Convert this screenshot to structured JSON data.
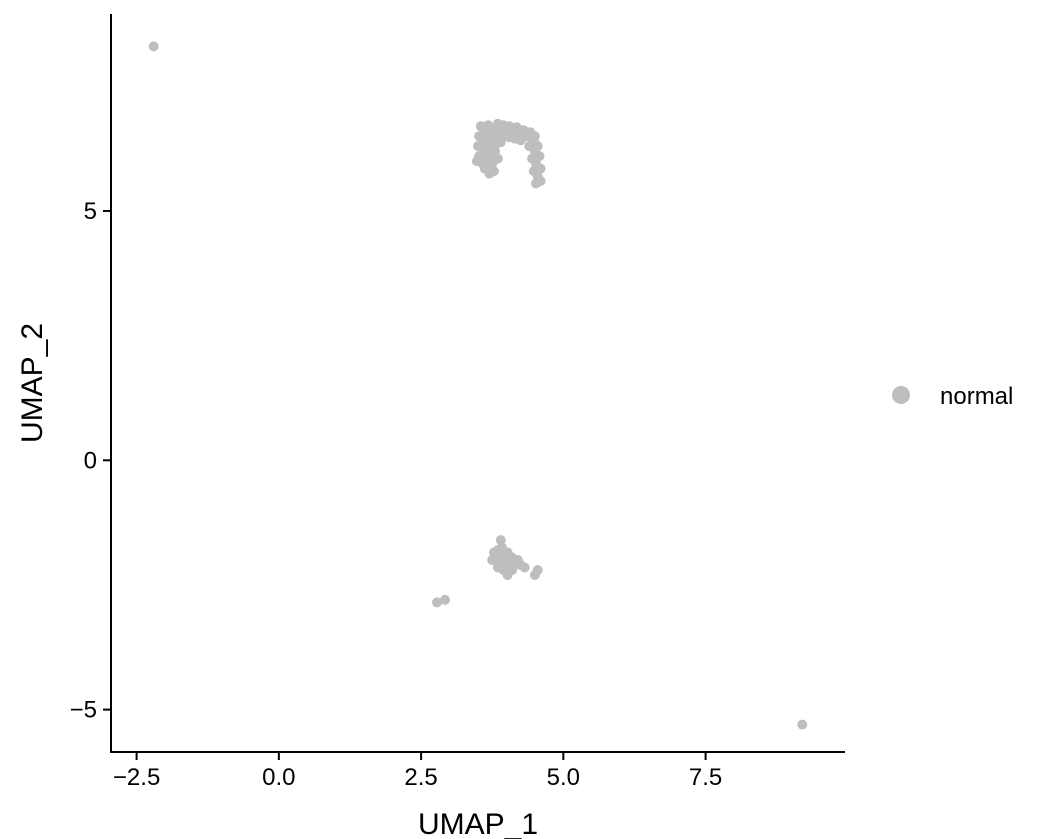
{
  "chart_data": {
    "type": "scatter",
    "title": "",
    "xlabel": "UMAP_1",
    "ylabel": "UMAP_2",
    "xlim": [
      -2.95,
      9.95
    ],
    "ylim": [
      -5.85,
      8.95
    ],
    "xticks": [
      {
        "value": -2.5,
        "label": "−2.5"
      },
      {
        "value": 0.0,
        "label": "0.0"
      },
      {
        "value": 2.5,
        "label": "2.5"
      },
      {
        "value": 5.0,
        "label": "5.0"
      },
      {
        "value": 7.5,
        "label": "7.5"
      }
    ],
    "yticks": [
      {
        "value": -5,
        "label": "−5"
      },
      {
        "value": 0,
        "label": "0"
      },
      {
        "value": 5,
        "label": "5"
      }
    ],
    "grid": false,
    "legend": {
      "position": "right",
      "entries": [
        {
          "label": "normal",
          "color": "#bebebe"
        }
      ]
    },
    "series": [
      {
        "name": "normal",
        "color": "#bebebe",
        "points": [
          [
            -2.2,
            8.3
          ],
          [
            9.2,
            -5.3
          ],
          [
            2.78,
            -2.85
          ],
          [
            2.92,
            -2.8
          ],
          [
            3.55,
            6.7
          ],
          [
            3.68,
            6.72
          ],
          [
            3.85,
            6.75
          ],
          [
            3.95,
            6.72
          ],
          [
            4.05,
            6.7
          ],
          [
            4.18,
            6.68
          ],
          [
            4.3,
            6.62
          ],
          [
            4.42,
            6.58
          ],
          [
            4.5,
            6.5
          ],
          [
            3.52,
            6.5
          ],
          [
            3.6,
            6.55
          ],
          [
            3.7,
            6.6
          ],
          [
            3.8,
            6.62
          ],
          [
            3.9,
            6.6
          ],
          [
            4.0,
            6.6
          ],
          [
            4.1,
            6.58
          ],
          [
            4.22,
            6.55
          ],
          [
            4.35,
            6.5
          ],
          [
            4.48,
            6.4
          ],
          [
            4.55,
            6.3
          ],
          [
            3.5,
            6.3
          ],
          [
            3.58,
            6.35
          ],
          [
            3.66,
            6.42
          ],
          [
            3.75,
            6.45
          ],
          [
            3.85,
            6.5
          ],
          [
            3.95,
            6.5
          ],
          [
            4.05,
            6.48
          ],
          [
            4.15,
            6.45
          ],
          [
            4.25,
            6.42
          ],
          [
            4.4,
            6.3
          ],
          [
            4.5,
            6.2
          ],
          [
            4.58,
            6.1
          ],
          [
            3.52,
            6.1
          ],
          [
            3.6,
            6.15
          ],
          [
            3.68,
            6.25
          ],
          [
            3.75,
            6.3
          ],
          [
            3.82,
            6.35
          ],
          [
            3.9,
            6.38
          ],
          [
            4.45,
            6.05
          ],
          [
            4.52,
            5.95
          ],
          [
            4.6,
            5.85
          ],
          [
            3.48,
            6.0
          ],
          [
            3.58,
            5.95
          ],
          [
            3.65,
            6.05
          ],
          [
            3.72,
            6.1
          ],
          [
            3.8,
            6.2
          ],
          [
            4.48,
            5.8
          ],
          [
            4.55,
            5.7
          ],
          [
            4.52,
            5.55
          ],
          [
            4.6,
            5.6
          ],
          [
            3.62,
            5.85
          ],
          [
            3.7,
            5.75
          ],
          [
            3.78,
            5.8
          ],
          [
            3.75,
            5.95
          ],
          [
            3.85,
            6.05
          ],
          [
            3.78,
            -1.85
          ],
          [
            3.85,
            -1.8
          ],
          [
            3.92,
            -1.75
          ],
          [
            3.9,
            -1.6
          ],
          [
            3.95,
            -1.9
          ],
          [
            4.02,
            -1.85
          ],
          [
            4.1,
            -1.95
          ],
          [
            4.2,
            -2.0
          ],
          [
            3.75,
            -2.0
          ],
          [
            3.82,
            -1.95
          ],
          [
            3.88,
            -2.05
          ],
          [
            3.95,
            -2.05
          ],
          [
            4.05,
            -2.05
          ],
          [
            4.15,
            -2.1
          ],
          [
            4.25,
            -2.1
          ],
          [
            4.32,
            -2.15
          ],
          [
            3.85,
            -2.15
          ],
          [
            3.95,
            -2.2
          ],
          [
            4.02,
            -2.3
          ],
          [
            4.1,
            -2.2
          ],
          [
            4.5,
            -2.3
          ],
          [
            4.55,
            -2.2
          ]
        ]
      }
    ]
  }
}
